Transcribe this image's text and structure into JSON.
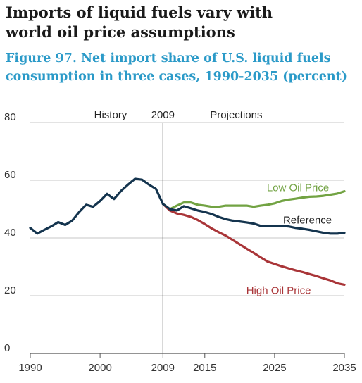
{
  "heading": [
    "Imports of liquid fuels vary with",
    "world oil price assumptions"
  ],
  "figure_title": [
    "Figure 97. Net import share of U.S. liquid fuels",
    "consumption in three cases, 1990-2035 (percent)"
  ],
  "chart_data": {
    "type": "line",
    "title": "Figure 97. Net import share of U.S. liquid fuels consumption in three cases, 1990-2035 (percent)",
    "xlabel": "",
    "ylabel": "",
    "xlim": [
      1990,
      2035
    ],
    "ylim": [
      0,
      80
    ],
    "x_ticks": [
      1990,
      2000,
      2009,
      2015,
      2025,
      2035
    ],
    "y_ticks": [
      0,
      20,
      40,
      60,
      80
    ],
    "grid": "horizontal",
    "divider_year": 2009,
    "section_labels": [
      "History",
      "2009",
      "Projections"
    ],
    "colors": {
      "history": "#14344e",
      "Reference": "#14344e",
      "Low Oil Price": "#72a343",
      "High Oil Price": "#a93538",
      "grid": "#c7c7c7",
      "axis": "#555555"
    },
    "series": [
      {
        "name": "History",
        "label_visible": false,
        "x": [
          1990,
          1991,
          1992,
          1993,
          1994,
          1995,
          1996,
          1997,
          1998,
          1999,
          2000,
          2001,
          2002,
          2003,
          2004,
          2005,
          2006,
          2007,
          2008,
          2009
        ],
        "values": [
          43.5,
          41.5,
          42.8,
          44.0,
          45.5,
          44.5,
          46.0,
          49.0,
          51.5,
          50.8,
          52.8,
          55.3,
          53.5,
          56.3,
          58.5,
          60.5,
          60.2,
          58.5,
          57.0,
          51.8
        ]
      },
      {
        "name": "Low Oil Price",
        "label_visible": true,
        "x": [
          2009,
          2010,
          2011,
          2012,
          2013,
          2014,
          2015,
          2016,
          2017,
          2018,
          2019,
          2020,
          2021,
          2022,
          2023,
          2024,
          2025,
          2026,
          2027,
          2028,
          2029,
          2030,
          2031,
          2032,
          2033,
          2034,
          2035
        ],
        "values": [
          51.8,
          50.0,
          51.2,
          52.3,
          52.3,
          51.5,
          51.2,
          50.8,
          50.8,
          51.2,
          51.2,
          51.2,
          51.2,
          50.8,
          51.2,
          51.5,
          52.0,
          52.8,
          53.3,
          53.6,
          54.0,
          54.3,
          54.4,
          54.6,
          55.0,
          55.4,
          56.2
        ]
      },
      {
        "name": "Reference",
        "label_visible": true,
        "x": [
          2009,
          2010,
          2011,
          2012,
          2013,
          2014,
          2015,
          2016,
          2017,
          2018,
          2019,
          2020,
          2021,
          2022,
          2023,
          2024,
          2025,
          2026,
          2027,
          2028,
          2029,
          2030,
          2031,
          2032,
          2033,
          2034,
          2035
        ],
        "values": [
          51.8,
          50.0,
          49.5,
          51.0,
          50.3,
          49.5,
          49.0,
          48.3,
          47.3,
          46.5,
          46.0,
          45.7,
          45.4,
          45.0,
          44.2,
          44.2,
          44.2,
          44.2,
          44.0,
          43.5,
          43.2,
          42.8,
          42.3,
          41.8,
          41.5,
          41.5,
          41.8
        ]
      },
      {
        "name": "High Oil Price",
        "label_visible": true,
        "x": [
          2009,
          2010,
          2011,
          2012,
          2013,
          2014,
          2015,
          2016,
          2017,
          2018,
          2019,
          2020,
          2021,
          2022,
          2023,
          2024,
          2025,
          2026,
          2027,
          2028,
          2029,
          2030,
          2031,
          2032,
          2033,
          2034,
          2035
        ],
        "values": [
          51.8,
          49.5,
          48.5,
          48.0,
          47.3,
          46.2,
          44.8,
          43.3,
          42.0,
          40.8,
          39.3,
          37.8,
          36.3,
          34.8,
          33.3,
          31.8,
          31.0,
          30.2,
          29.5,
          28.8,
          28.2,
          27.5,
          26.8,
          26.0,
          25.3,
          24.3,
          23.8
        ]
      }
    ]
  }
}
